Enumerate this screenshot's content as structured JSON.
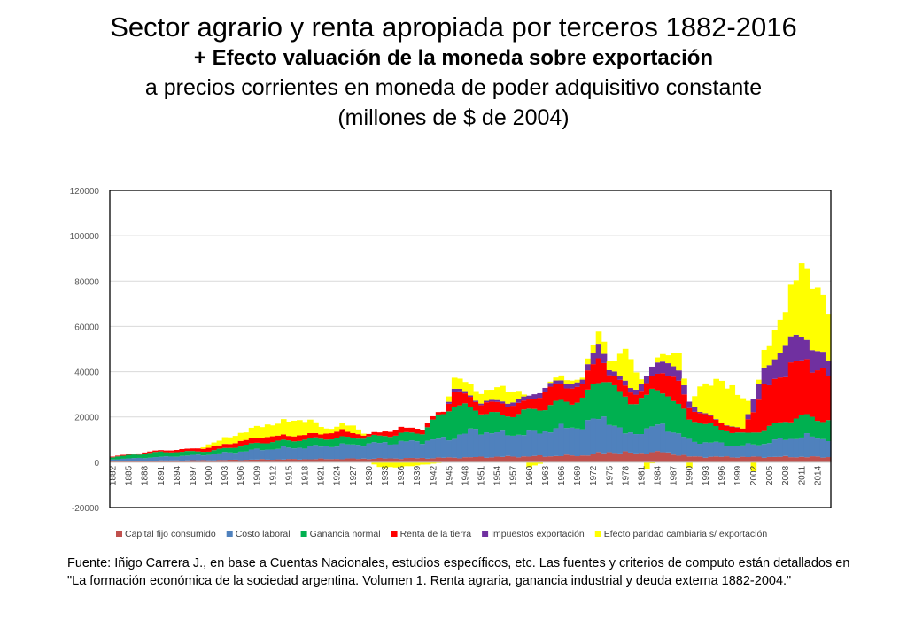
{
  "title": {
    "line1": "Sector agrario y renta apropiada por terceros 1882-2016",
    "line2": "+ Efecto valuación de la moneda sobre exportación",
    "line3": "a precios corrientes en moneda de poder adquisitivo constante",
    "line4": "(millones de $ de 2004)"
  },
  "source": {
    "line1": "Fuente: Iñigo Carrera J.,  en base a Cuentas Nacionales, estudios específicos, etc. Las fuentes y criterios de computo están detallados en",
    "line2": "\"La formación económica de la sociedad argentina. Volumen 1. Renta agraria, ganancia industrial y deuda externa 1882-2004.\""
  },
  "chart_data": {
    "type": "bar",
    "stacked": true,
    "ylim": [
      -20000,
      120000
    ],
    "y_ticks": [
      -20000,
      0,
      20000,
      40000,
      60000,
      80000,
      100000,
      120000
    ],
    "x_tick_labels": [
      "1882",
      "1885",
      "1888",
      "1891",
      "1894",
      "1897",
      "1900",
      "1903",
      "1906",
      "1909",
      "1912",
      "1915",
      "1918",
      "1921",
      "1924",
      "1927",
      "1930",
      "1933",
      "1936",
      "1939",
      "1942",
      "1945",
      "1948",
      "1951",
      "1954",
      "1957",
      "1960",
      "1963",
      "1966",
      "1969",
      "1972",
      "1975",
      "1978",
      "1981",
      "1984",
      "1987",
      "1990",
      "1993",
      "1996",
      "1999",
      "2002",
      "2005",
      "2008",
      "2011",
      "2014"
    ],
    "grid": true,
    "legend_position": "bottom",
    "x_start": 1882,
    "x_end": 2016,
    "series": [
      {
        "name": "Capital fijo consumido",
        "color": "#c0504d",
        "knots": [
          [
            1882,
            500
          ],
          [
            1890,
            700
          ],
          [
            1900,
            900
          ],
          [
            1910,
            1200
          ],
          [
            1920,
            1400
          ],
          [
            1930,
            1600
          ],
          [
            1940,
            1800
          ],
          [
            1950,
            2200
          ],
          [
            1960,
            2600
          ],
          [
            1970,
            3000
          ],
          [
            1975,
            4500
          ],
          [
            1980,
            4000
          ],
          [
            1985,
            4500
          ],
          [
            1990,
            2500
          ],
          [
            2000,
            2300
          ],
          [
            2010,
            2400
          ],
          [
            2016,
            2300
          ]
        ]
      },
      {
        "name": "Costo laboral",
        "color": "#4f81bd",
        "knots": [
          [
            1882,
            800
          ],
          [
            1890,
            1500
          ],
          [
            1900,
            2500
          ],
          [
            1910,
            4500
          ],
          [
            1920,
            5500
          ],
          [
            1930,
            6500
          ],
          [
            1940,
            7500
          ],
          [
            1945,
            8500
          ],
          [
            1950,
            12000
          ],
          [
            1955,
            10000
          ],
          [
            1960,
            10000
          ],
          [
            1965,
            12000
          ],
          [
            1970,
            13000
          ],
          [
            1974,
            16000
          ],
          [
            1978,
            8000
          ],
          [
            1985,
            12000
          ],
          [
            1990,
            7000
          ],
          [
            1995,
            6000
          ],
          [
            2000,
            5000
          ],
          [
            2004,
            6000
          ],
          [
            2008,
            8000
          ],
          [
            2012,
            9000
          ],
          [
            2016,
            8000
          ]
        ]
      },
      {
        "name": "Ganancia normal",
        "color": "#00b050",
        "knots": [
          [
            1882,
            1000
          ],
          [
            1890,
            2200
          ],
          [
            1900,
            1500
          ],
          [
            1910,
            3000
          ],
          [
            1920,
            3500
          ],
          [
            1930,
            3000
          ],
          [
            1940,
            4000
          ],
          [
            1944,
            12000
          ],
          [
            1946,
            14000
          ],
          [
            1950,
            9000
          ],
          [
            1955,
            8000
          ],
          [
            1960,
            10000
          ],
          [
            1965,
            11000
          ],
          [
            1970,
            12000
          ],
          [
            1974,
            18000
          ],
          [
            1980,
            14000
          ],
          [
            1985,
            16000
          ],
          [
            1990,
            10000
          ],
          [
            1995,
            7000
          ],
          [
            2000,
            5000
          ],
          [
            2004,
            6000
          ],
          [
            2008,
            8000
          ],
          [
            2012,
            9000
          ],
          [
            2016,
            8000
          ]
        ]
      },
      {
        "name": "Renta de la tierra",
        "color": "#ff0000",
        "knots": [
          [
            1882,
            300
          ],
          [
            1890,
            600
          ],
          [
            1900,
            1500
          ],
          [
            1910,
            2500
          ],
          [
            1920,
            2000
          ],
          [
            1925,
            3000
          ],
          [
            1930,
            1000
          ],
          [
            1935,
            2500
          ],
          [
            1940,
            2000
          ],
          [
            1944,
            1000
          ],
          [
            1946,
            6000
          ],
          [
            1950,
            4000
          ],
          [
            1955,
            5000
          ],
          [
            1960,
            4000
          ],
          [
            1964,
            8000
          ],
          [
            1970,
            6000
          ],
          [
            1973,
            12000
          ],
          [
            1975,
            3000
          ],
          [
            1978,
            6000
          ],
          [
            1981,
            3000
          ],
          [
            1984,
            8000
          ],
          [
            1988,
            10000
          ],
          [
            1990,
            5000
          ],
          [
            1995,
            3000
          ],
          [
            2000,
            2000
          ],
          [
            2004,
            18000
          ],
          [
            2008,
            22000
          ],
          [
            2011,
            25000
          ],
          [
            2014,
            22000
          ],
          [
            2016,
            20000
          ]
        ]
      },
      {
        "name": "Impuestos exportación",
        "color": "#7030a0",
        "knots": [
          [
            1882,
            0
          ],
          [
            1944,
            0
          ],
          [
            1946,
            1500
          ],
          [
            1950,
            500
          ],
          [
            1955,
            1000
          ],
          [
            1960,
            2000
          ],
          [
            1965,
            1500
          ],
          [
            1970,
            2000
          ],
          [
            1973,
            6000
          ],
          [
            1975,
            2000
          ],
          [
            1980,
            2000
          ],
          [
            1984,
            5000
          ],
          [
            1988,
            5000
          ],
          [
            1990,
            3000
          ],
          [
            1992,
            500
          ],
          [
            2000,
            0
          ],
          [
            2002,
            5000
          ],
          [
            2006,
            10000
          ],
          [
            2008,
            12000
          ],
          [
            2011,
            11000
          ],
          [
            2014,
            8000
          ],
          [
            2016,
            6000
          ]
        ]
      },
      {
        "name": "Efecto paridad cambiaria s/ exportación",
        "color": "#ffff00",
        "knots": [
          [
            1882,
            0
          ],
          [
            1898,
            0
          ],
          [
            1900,
            1500
          ],
          [
            1910,
            5000
          ],
          [
            1914,
            6000
          ],
          [
            1918,
            7000
          ],
          [
            1922,
            2000
          ],
          [
            1927,
            3000
          ],
          [
            1930,
            0
          ],
          [
            1932,
            -2000
          ],
          [
            1935,
            -2500
          ],
          [
            1938,
            -1500
          ],
          [
            1941,
            -1000
          ],
          [
            1944,
            0
          ],
          [
            1946,
            5000
          ],
          [
            1950,
            4000
          ],
          [
            1955,
            6000
          ],
          [
            1958,
            4000
          ],
          [
            1960,
            -2000
          ],
          [
            1963,
            0
          ],
          [
            1966,
            2000
          ],
          [
            1970,
            1000
          ],
          [
            1973,
            5000
          ],
          [
            1976,
            5000
          ],
          [
            1978,
            14000
          ],
          [
            1980,
            8000
          ],
          [
            1982,
            -3000
          ],
          [
            1984,
            2000
          ],
          [
            1986,
            4000
          ],
          [
            1988,
            8000
          ],
          [
            1990,
            -2000
          ],
          [
            1992,
            12000
          ],
          [
            1995,
            16000
          ],
          [
            1998,
            18000
          ],
          [
            2000,
            14000
          ],
          [
            2002,
            -4000
          ],
          [
            2004,
            8000
          ],
          [
            2006,
            12000
          ],
          [
            2008,
            15000
          ],
          [
            2010,
            28000
          ],
          [
            2011,
            35000
          ],
          [
            2012,
            28000
          ],
          [
            2014,
            26000
          ],
          [
            2016,
            25000
          ]
        ]
      }
    ]
  },
  "colors": {
    "grid": "#d9d9d9",
    "axis_text": "#595959",
    "frame": "#000000"
  }
}
